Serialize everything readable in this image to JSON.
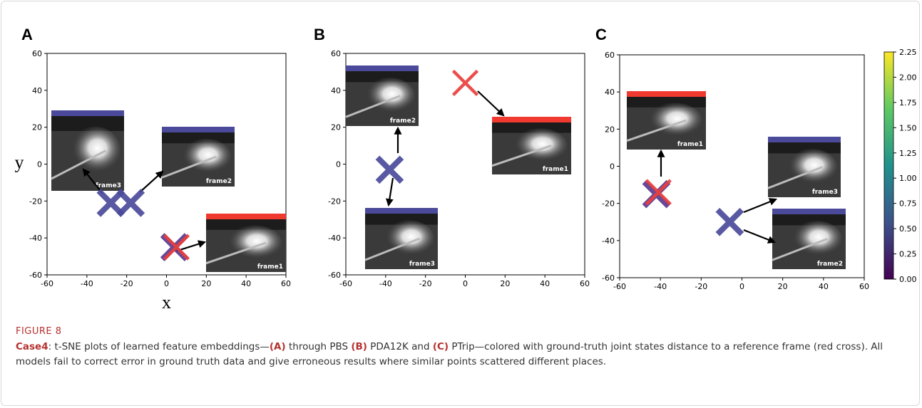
{
  "chart_data": [
    {
      "type": "scatter",
      "panel": "A",
      "xlabel": "x",
      "ylabel": "y",
      "xlim": [
        -60,
        60
      ],
      "ylim": [
        -60,
        60
      ],
      "xticks": [
        -60,
        -40,
        -20,
        0,
        20,
        40,
        60
      ],
      "yticks": [
        -60,
        -40,
        -20,
        0,
        20,
        40,
        60
      ],
      "points": {
        "x": [
          -28,
          -18,
          4,
          5
        ],
        "y": [
          -21,
          -21,
          -45,
          -45
        ],
        "colors": [
          "#4b4a9a",
          "#4b4a9a",
          "#5a3a8e",
          "#e8403c"
        ]
      },
      "images": [
        {
          "label": "frame3",
          "color": "#4b4a9a"
        },
        {
          "label": "frame2",
          "color": "#4b4a9a"
        },
        {
          "label": "frame1",
          "color": "#f03a30"
        }
      ]
    },
    {
      "type": "scatter",
      "panel": "B",
      "xlim": [
        -60,
        60
      ],
      "ylim": [
        -60,
        60
      ],
      "xticks": [
        -60,
        -40,
        -20,
        0,
        20,
        40,
        60
      ],
      "yticks": [
        -60,
        -40,
        -20,
        0,
        20,
        40,
        60
      ],
      "points": {
        "x": [
          -38,
          0
        ],
        "y": [
          -3,
          44
        ],
        "colors": [
          "#4b4a9a",
          "#e8403c"
        ]
      },
      "images": [
        {
          "label": "frame2",
          "color": "#4b4a9a"
        },
        {
          "label": "frame1",
          "color": "#f03a30"
        },
        {
          "label": "frame3",
          "color": "#4b4a9a"
        }
      ]
    },
    {
      "type": "scatter",
      "panel": "C",
      "xlim": [
        -60,
        60
      ],
      "ylim": [
        -60,
        60
      ],
      "xticks": [
        -60,
        -40,
        -20,
        0,
        20,
        40,
        60
      ],
      "yticks": [
        -60,
        -40,
        -20,
        0,
        20,
        40,
        60
      ],
      "points": {
        "x": [
          -42,
          -41,
          -6
        ],
        "y": [
          -15,
          -14,
          -30
        ],
        "colors": [
          "#5a3a8e",
          "#e8403c",
          "#4b4a9a"
        ]
      },
      "images": [
        {
          "label": "frame1",
          "color": "#f03a30"
        },
        {
          "label": "frame3",
          "color": "#4b4a9a"
        },
        {
          "label": "frame2",
          "color": "#4b4a9a"
        }
      ],
      "colorbar": {
        "lim": [
          0,
          2.25
        ],
        "ticks": [
          {
            "value": 0,
            "label": "0.00"
          },
          {
            "value": 0.25,
            "label": "0.25"
          },
          {
            "value": 0.5,
            "label": "0.50"
          },
          {
            "value": 0.75,
            "label": "0.75"
          },
          {
            "value": 1,
            "label": "1.00"
          },
          {
            "value": 1.25,
            "label": "1.25"
          },
          {
            "value": 1.5,
            "label": "1.50"
          },
          {
            "value": 1.75,
            "label": "1.75"
          },
          {
            "value": 2,
            "label": "2.00"
          },
          {
            "value": 2.25,
            "label": "2.25"
          }
        ]
      }
    }
  ],
  "caption": {
    "label": "FIGURE 8",
    "segments": [
      {
        "text": "Case4",
        "bold": true
      },
      {
        "text": ": t-SNE plots of learned feature embeddings—",
        "bold": false
      },
      {
        "text": "(A)",
        "bold": true
      },
      {
        "text": " through PBS ",
        "bold": false
      },
      {
        "text": "(B)",
        "bold": true
      },
      {
        "text": " PDA12K and ",
        "bold": false
      },
      {
        "text": "(C)",
        "bold": true
      },
      {
        "text": " PTrip—colored with ground-truth joint states distance to a reference frame (red cross). All models fail to correct error in ground truth data and give erroneous results where similar points scattered different places.",
        "bold": false
      }
    ]
  }
}
